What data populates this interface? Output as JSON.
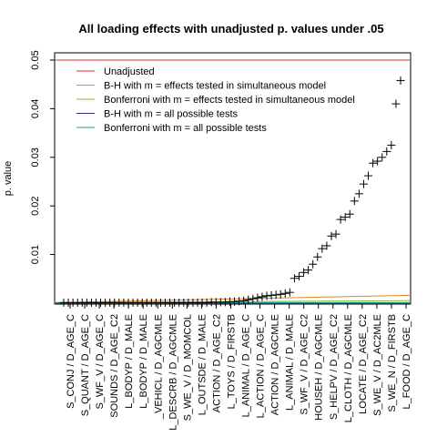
{
  "chart_data": {
    "type": "scatter",
    "title": "All loading effects with unadjusted p. values under .05",
    "xlabel": "",
    "ylabel": "p. value",
    "ylim": [
      -0.0002,
      0.0515
    ],
    "y_ticks": [
      0.01,
      0.02,
      0.03,
      0.04,
      0.05
    ],
    "y_tick_labels": [
      "0.01",
      "0.02",
      "0.03",
      "0.04",
      "0.05"
    ],
    "categories": [
      "S_CONJ / D_AGE_C",
      "S_QUANT / D_AGE_C",
      "S_WF_V / D_AGE_C",
      "SOUNDS / D_AGE_C2",
      "L_BODYP / D_MALE",
      "L_BODYP / D_MALE",
      "_VEHICL / D_AGCMLE",
      "L_DESCRB / D_AGCMLE",
      "S_WE_V / D_MOMCOL",
      "L_OUTSDE / D_MALE",
      "ACTION / D_AGE_C2",
      "L_TOYS / D_FIRSTB",
      "L_ANIMAL / D_AGE_C",
      "L_ACTION / D_AGE_C",
      "ACTION / D_AGCMLE",
      "L_ANIMAL / D_MALE",
      "S_WF_V / D_AGE_C2",
      "HOUSEH / D_AGCMLE",
      "S_HELPV / D_AGE_C2",
      "L_CLOTH / D_AGCMLE",
      "LOCATE / D_AGE_C2",
      "S_WE_V / D_AC2MLE",
      "S_WE_N / D_FIRSTB",
      "L_FOOD / D_AGE_C"
    ],
    "series": [
      {
        "name": "points",
        "marker": "+",
        "color": "#000000",
        "values": [
          0.0001,
          0.0001,
          0.0001,
          0.0001,
          0.0001,
          0.0001,
          0.0001,
          0.0001,
          0.0001,
          0.0001,
          0.0001,
          0.0001,
          0.0001,
          0.0001,
          0.0001,
          0.0001,
          0.0001,
          0.0001,
          0.0001,
          0.0001,
          0.0001,
          0.0001,
          0.0001,
          0.0001,
          0.0001,
          0.0001,
          0.0001,
          0.0001,
          0.0001,
          0.0001,
          0.0001,
          0.0001,
          0.0002,
          0.0002,
          0.0002,
          0.0002,
          0.0003,
          0.0003,
          0.0004,
          0.0005,
          0.0007,
          0.0009,
          0.0011,
          0.0013,
          0.0015,
          0.0016,
          0.0017,
          0.0018,
          0.002,
          0.0022,
          0.0051,
          0.0055,
          0.0063,
          0.0068,
          0.008,
          0.0095,
          0.0112,
          0.0118,
          0.0138,
          0.0142,
          0.0172,
          0.0177,
          0.0183,
          0.021,
          0.0225,
          0.0245,
          0.0262,
          0.0288,
          0.0292,
          0.03,
          0.0312,
          0.0325,
          0.041,
          0.0458
        ]
      }
    ],
    "lines": [
      {
        "name": "Unadjusted",
        "color": "#e0312b",
        "y_start": 0.05,
        "y_end": 0.05
      },
      {
        "name": "B-H with m = effects tested in simultaneous model",
        "color": "#e08a28",
        "y_start": 0.0001,
        "y_end": 0.0016
      },
      {
        "name": "Bonferroni with m = effects tested in simultaneous model",
        "color": "#7fbf2a",
        "y_start": 0.0001,
        "y_end": 0.0005
      },
      {
        "name": "B-H with m = all possible tests",
        "color": "#2a2a8f",
        "y_start": 0.0,
        "y_end": 0.0
      },
      {
        "name": "Bonferroni with m = all possible tests",
        "color": "#199c9c",
        "y_start": 0.0001,
        "y_end": 0.0001
      }
    ],
    "legend": {
      "position": "top-left",
      "entries": [
        "Unadjusted",
        "B-H with m = effects tested in simultaneous model",
        "Bonferroni with m = effects tested in simultaneous model",
        "B-H with m = all possible tests",
        "Bonferroni with m = all possible tests"
      ]
    },
    "grid": false
  }
}
